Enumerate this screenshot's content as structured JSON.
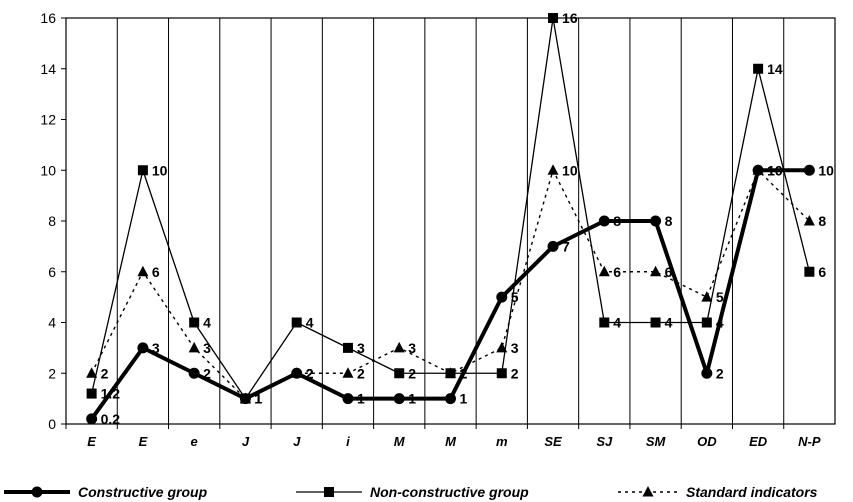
{
  "chart_data": {
    "type": "line",
    "categories": [
      "E",
      "E",
      "e",
      "J",
      "J",
      "i",
      "M",
      "M",
      "m",
      "SE",
      "SJ",
      "SM",
      "OD",
      "ED",
      "N-P"
    ],
    "ylim": [
      0,
      16
    ],
    "yticks": [
      0,
      2,
      4,
      6,
      8,
      10,
      12,
      14,
      16
    ],
    "grid": "vertical",
    "legend": "bottom",
    "series": [
      {
        "name": "Constructive group",
        "values": [
          0.2,
          3,
          2,
          1,
          2,
          1,
          1,
          1,
          5,
          7,
          8,
          8,
          2,
          10,
          10
        ],
        "labels": [
          "0.2",
          "3",
          "2",
          "1",
          "2",
          "1",
          "1",
          "1",
          "5",
          "7",
          "8",
          "8",
          "2",
          "10",
          "10"
        ],
        "style": "thick-solid",
        "marker": "circle",
        "color": "#000000"
      },
      {
        "name": "Non-constructive group",
        "values": [
          1.2,
          10,
          4,
          1,
          4,
          3,
          2,
          2,
          2,
          16,
          4,
          4,
          4,
          14,
          6
        ],
        "labels": [
          "1.2",
          "10",
          "4",
          "1",
          "4",
          "3",
          "2",
          "2",
          "2",
          "16",
          "4",
          "4",
          "4",
          "14",
          "6"
        ],
        "style": "thin-solid",
        "marker": "square",
        "color": "#000000"
      },
      {
        "name": "Standard indicators",
        "values": [
          2,
          6,
          3,
          1,
          2,
          2,
          3,
          2,
          3,
          10,
          6,
          6,
          5,
          10,
          8
        ],
        "labels": [
          "2",
          "6",
          "3",
          "1",
          "2",
          "2",
          "3",
          "2",
          "3",
          "10",
          "6",
          "6",
          "5",
          "10",
          "8"
        ],
        "style": "dotted",
        "marker": "triangle",
        "color": "#000000"
      }
    ]
  }
}
